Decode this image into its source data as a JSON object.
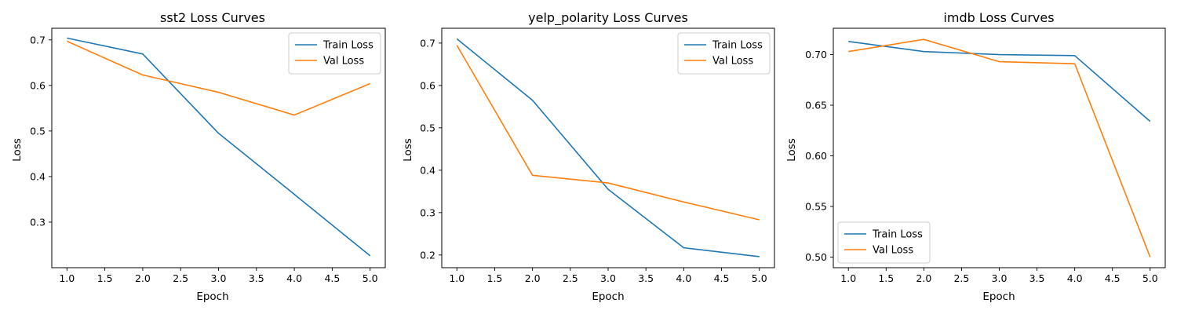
{
  "chart_data": [
    {
      "type": "line",
      "title": "sst2 Loss Curves",
      "xlabel": "Epoch",
      "ylabel": "Loss",
      "x": [
        1,
        2,
        3,
        4,
        5
      ],
      "xlim": [
        0.8,
        5.2
      ],
      "ylim": [
        0.2,
        0.7255
      ],
      "xticks": [
        "1.0",
        "1.5",
        "2.0",
        "2.5",
        "3.0",
        "3.5",
        "4.0",
        "4.5",
        "5.0"
      ],
      "yticks": [
        "0.3",
        "0.4",
        "0.5",
        "0.6",
        "0.7"
      ],
      "grid": false,
      "legend": "top-right",
      "series": [
        {
          "name": "Train Loss",
          "color": "#1f77b4",
          "values": [
            0.704,
            0.669,
            0.495,
            0.361,
            0.226
          ]
        },
        {
          "name": "Val Loss",
          "color": "#ff7f0e",
          "values": [
            0.697,
            0.623,
            0.585,
            0.535,
            0.604
          ]
        }
      ]
    },
    {
      "type": "line",
      "title": "yelp_polarity Loss Curves",
      "xlabel": "Epoch",
      "ylabel": "Loss",
      "x": [
        1,
        2,
        3,
        4,
        5
      ],
      "xlim": [
        0.8,
        5.2
      ],
      "ylim": [
        0.17,
        0.735
      ],
      "xticks": [
        "1.0",
        "1.5",
        "2.0",
        "2.5",
        "3.0",
        "3.5",
        "4.0",
        "4.5",
        "5.0"
      ],
      "yticks": [
        "0.2",
        "0.3",
        "0.4",
        "0.5",
        "0.6",
        "0.7"
      ],
      "grid": false,
      "legend": "top-right",
      "series": [
        {
          "name": "Train Loss",
          "color": "#1f77b4",
          "values": [
            0.71,
            0.565,
            0.355,
            0.217,
            0.196
          ]
        },
        {
          "name": "Val Loss",
          "color": "#ff7f0e",
          "values": [
            0.695,
            0.388,
            0.37,
            0.325,
            0.283
          ]
        }
      ]
    },
    {
      "type": "line",
      "title": "imdb Loss Curves",
      "xlabel": "Epoch",
      "ylabel": "Loss",
      "x": [
        1,
        2,
        3,
        4,
        5
      ],
      "xlim": [
        0.8,
        5.2
      ],
      "ylim": [
        0.4895,
        0.726
      ],
      "xticks": [
        "1.0",
        "1.5",
        "2.0",
        "2.5",
        "3.0",
        "3.5",
        "4.0",
        "4.5",
        "5.0"
      ],
      "yticks": [
        "0.50",
        "0.55",
        "0.60",
        "0.65",
        "0.70"
      ],
      "grid": false,
      "legend": "bottom-left",
      "series": [
        {
          "name": "Train Loss",
          "color": "#1f77b4",
          "values": [
            0.713,
            0.703,
            0.7,
            0.699,
            0.634
          ]
        },
        {
          "name": "Val Loss",
          "color": "#ff7f0e",
          "values": [
            0.703,
            0.715,
            0.693,
            0.691,
            0.5
          ]
        }
      ]
    }
  ]
}
